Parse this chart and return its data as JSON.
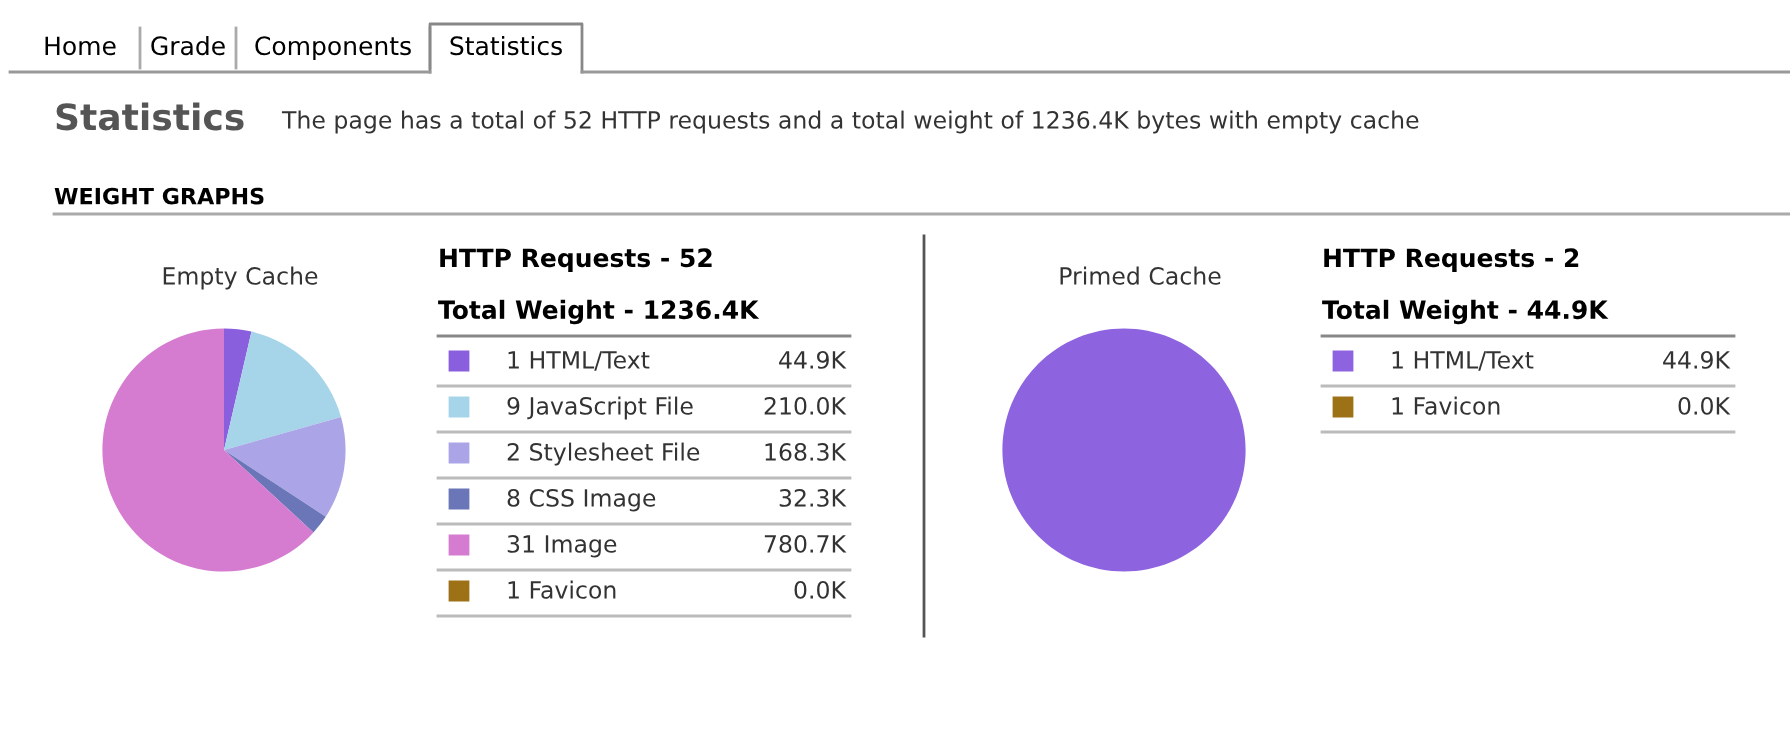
{
  "chart_data": [
    {
      "type": "other",
      "annotations": [
        "Home",
        "Grade",
        "Components",
        "Statistics",
        "Statistics",
        "The page has a total of 52 HTTP requests and a total weight of 1236.4K bytes with empty cache",
        "WEIGHT GRAPHS"
      ]
    },
    {
      "type": "pie",
      "title": "Empty Cache",
      "legend": "right",
      "annotations": [
        "HTTP Requests - 52",
        "Total Weight - 1236.4K"
      ],
      "categories": [
        "1 HTML/Text",
        "9 JavaScript File",
        "2 Stylesheet File",
        "8 CSS Image",
        "31 Image",
        "1 Favicon"
      ],
      "values": [
        44.9,
        210.0,
        168.3,
        32.3,
        780.7,
        0.0
      ],
      "value_labels": [
        "44.9K",
        "210.0K",
        "168.3K",
        "32.3K",
        "780.7K",
        "0.0K"
      ],
      "colors": [
        "#8a5fde",
        "#a6d5ea",
        "#aba5e8",
        "#6a76b7",
        "#d57bd0",
        "#9d7116"
      ]
    },
    {
      "type": "pie",
      "title": "Primed Cache",
      "legend": "right",
      "annotations": [
        "HTTP Requests - 2",
        "Total Weight - 44.9K"
      ],
      "categories": [
        "1 HTML/Text",
        "1 Favicon"
      ],
      "values": [
        44.9,
        0.0
      ],
      "value_labels": [
        "44.9K",
        "0.0K"
      ],
      "colors": [
        "#8d63e0",
        "#9d7116"
      ]
    }
  ]
}
